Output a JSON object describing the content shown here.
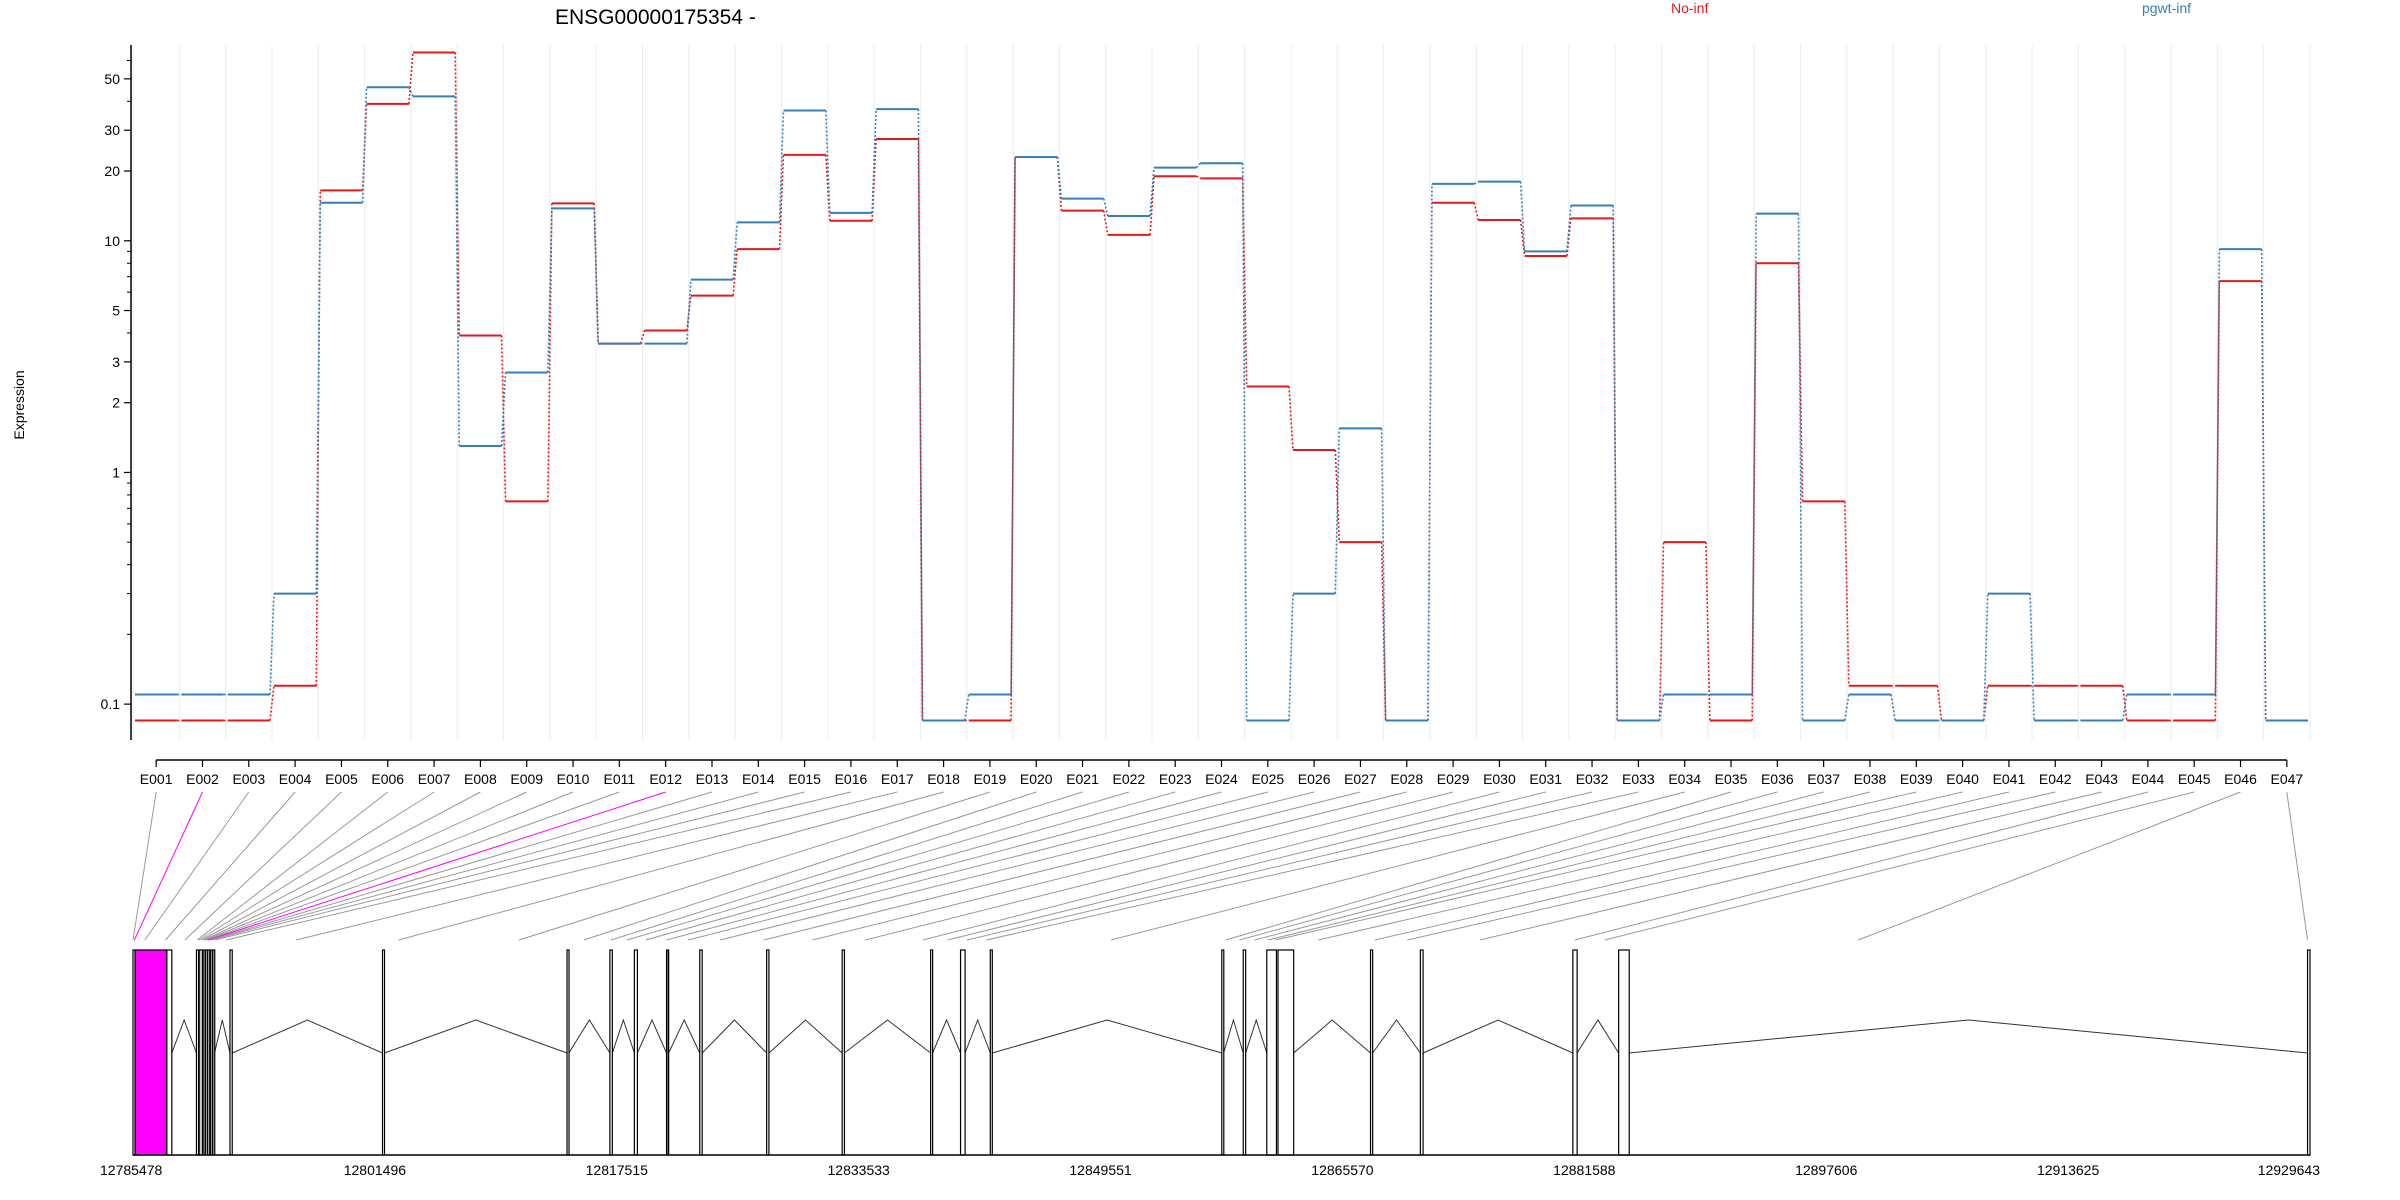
{
  "chart_data": {
    "type": "line",
    "title": "ENSG00000175354 -",
    "ylabel": "Expression",
    "xlabel": "",
    "y_scale": "log",
    "ylim": [
      0.07,
      70
    ],
    "y_ticks": [
      0.1,
      1,
      2,
      3,
      5,
      10,
      20,
      30,
      50
    ],
    "y_tick_labels": [
      "0.1",
      "1",
      "2",
      "3",
      "5",
      "10",
      "20",
      "30",
      "50"
    ],
    "grid": "vertical",
    "legend_placement": "top",
    "categories": [
      "E001",
      "E002",
      "E003",
      "E004",
      "E005",
      "E006",
      "E007",
      "E008",
      "E009",
      "E010",
      "E011",
      "E012",
      "E013",
      "E014",
      "E015",
      "E016",
      "E017",
      "E018",
      "E019",
      "E020",
      "E021",
      "E022",
      "E023",
      "E024",
      "E025",
      "E026",
      "E027",
      "E028",
      "E029",
      "E030",
      "E031",
      "E032",
      "E033",
      "E034",
      "E035",
      "E036",
      "E037",
      "E038",
      "E039",
      "E040",
      "E041",
      "E042",
      "E043",
      "E044",
      "E045",
      "E046",
      "E047"
    ],
    "series": [
      {
        "name": "No-inf",
        "color": "#e31a1c",
        "values": [
          0.085,
          0.085,
          0.085,
          0.12,
          16.5,
          39,
          65,
          3.9,
          0.75,
          14.5,
          3.6,
          4.1,
          5.8,
          9.2,
          23.5,
          12.2,
          27.5,
          0.085,
          0.085,
          23,
          13.5,
          10.6,
          19,
          18.6,
          2.35,
          1.25,
          0.5,
          0.085,
          14.6,
          12.3,
          8.6,
          12.5,
          0.085,
          0.5,
          0.085,
          8,
          0.75,
          0.12,
          0.12,
          0.085,
          0.12,
          0.12,
          0.12,
          0.085,
          0.085,
          6.7,
          0.085
        ]
      },
      {
        "name": "pgwt-inf",
        "color": "#377eb8",
        "values": [
          0.11,
          0.11,
          0.11,
          0.3,
          14.6,
          46,
          42,
          1.3,
          2.7,
          13.8,
          3.6,
          3.6,
          6.8,
          12,
          36.5,
          13.2,
          37,
          0.085,
          0.11,
          23,
          15.2,
          12.8,
          20.7,
          21.6,
          0.085,
          0.3,
          1.55,
          0.085,
          17.6,
          18,
          9,
          14.2,
          0.085,
          0.11,
          0.11,
          13.1,
          0.085,
          0.11,
          0.085,
          0.085,
          0.3,
          0.085,
          0.085,
          0.11,
          0.11,
          9.2,
          0.085
        ]
      }
    ],
    "gene_model": {
      "ticks": [
        "12785478",
        "12801496",
        "12817515",
        "12833533",
        "12849551",
        "12865570",
        "12881588",
        "12897606",
        "12913625",
        "12929643"
      ],
      "range": [
        12785478,
        12929643
      ],
      "highlighted_exons": [
        "E002",
        "E012"
      ],
      "highlight_color": "#ff00ff",
      "grey_exons": [
        "E004",
        "E005",
        "E006",
        "E007",
        "E008"
      ],
      "exons": [
        [
          12785478,
          12785578
        ],
        [
          12785620,
          12787700
        ],
        [
          12787720,
          12788050
        ],
        [
          12789680,
          12789820
        ],
        [
          12789860,
          12790080
        ],
        [
          12790120,
          12790240
        ],
        [
          12790280,
          12790380
        ],
        [
          12790420,
          12790560
        ],
        [
          12790600,
          12790720
        ],
        [
          12790760,
          12790880
        ],
        [
          12791900,
          12792050
        ],
        [
          12802000,
          12802130
        ],
        [
          12814220,
          12814340
        ],
        [
          12817060,
          12817220
        ],
        [
          12818680,
          12818880
        ],
        [
          12820810,
          12820950
        ],
        [
          12823010,
          12823170
        ],
        [
          12827440,
          12827590
        ],
        [
          12832440,
          12832590
        ],
        [
          12838300,
          12838430
        ],
        [
          12840280,
          12840580
        ],
        [
          12842250,
          12842380
        ],
        [
          12857580,
          12857700
        ],
        [
          12859000,
          12859160
        ],
        [
          12860560,
          12861200
        ],
        [
          12861300,
          12862340
        ],
        [
          12867430,
          12867570
        ],
        [
          12870730,
          12870910
        ],
        [
          12880830,
          12881110
        ],
        [
          12883860,
          12884560
        ],
        [
          12929480,
          12929643
        ]
      ]
    }
  }
}
